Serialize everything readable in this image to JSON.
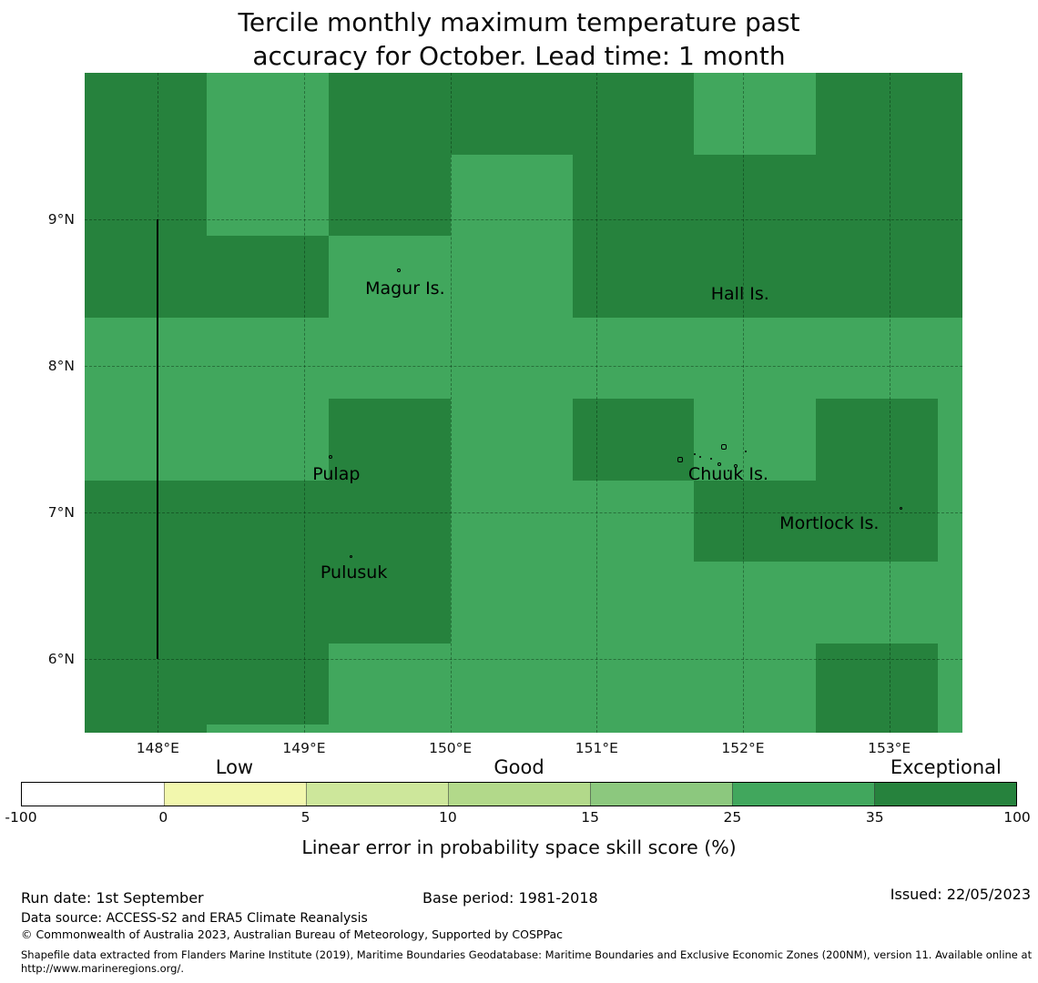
{
  "title": {
    "line1": "Tercile monthly maximum temperature past",
    "line2": "accuracy for October. Lead time: 1 month"
  },
  "chart_data": {
    "type": "heatmap",
    "title": "Tercile monthly maximum temperature past accuracy for October. Lead time: 1 month",
    "extent": {
      "lon_min": 147.5,
      "lon_max": 153.5,
      "lat_min": 5.5,
      "lat_max": 10.0
    },
    "x_axis": {
      "ticks": [
        {
          "label": "148°E",
          "lon": 148
        },
        {
          "label": "149°E",
          "lon": 149
        },
        {
          "label": "150°E",
          "lon": 150
        },
        {
          "label": "151°E",
          "lon": 151
        },
        {
          "label": "152°E",
          "lon": 152
        },
        {
          "label": "153°E",
          "lon": 153
        }
      ]
    },
    "y_axis": {
      "ticks": [
        {
          "label": "9°N",
          "lat": 9
        },
        {
          "label": "8°N",
          "lat": 8
        },
        {
          "label": "7°N",
          "lat": 7
        },
        {
          "label": "6°N",
          "lat": 6
        }
      ]
    },
    "grid": {
      "lon_edges": [
        147.5,
        148.3333,
        149.1667,
        150.0,
        150.8333,
        151.6667,
        152.5,
        153.3333,
        153.5
      ],
      "lat_edges": [
        10.0,
        9.4444,
        8.8889,
        8.3333,
        7.7778,
        7.2222,
        6.6667,
        6.1111,
        5.5556,
        5.5
      ],
      "rows": [
        "DMDDDMDD",
        "DMDMDDDD",
        "DDMMDDDD",
        "MMMMMMMM",
        "MMDMDMDM",
        "DDDMMDDM",
        "DDDMMMMM",
        "DDMMMMDM",
        "DMMMMMDM"
      ],
      "value_bins": {
        "D": "35-100",
        "M": "25-35"
      }
    },
    "cell_colors": {
      "D": "#26823D",
      "M": "#41A75D"
    },
    "eez_boundary": {
      "lon": 148.0,
      "lat_from": 6.0,
      "lat_to": 9.0
    },
    "islands": {
      "labels": [
        {
          "name": "Magur Is.",
          "lon": 149.69,
          "lat": 8.53
        },
        {
          "name": "Hall Is.",
          "lon": 151.98,
          "lat": 8.49
        },
        {
          "name": "Pulap",
          "lon": 149.22,
          "lat": 7.26
        },
        {
          "name": "Chuuk Is.",
          "lon": 151.9,
          "lat": 7.26
        },
        {
          "name": "Mortlock Is.",
          "lon": 152.59,
          "lat": 6.93
        },
        {
          "name": "Pulusuk",
          "lon": 149.34,
          "lat": 6.59
        }
      ],
      "marks": [
        {
          "lon": 149.65,
          "lat": 8.65,
          "s": 4
        },
        {
          "lon": 149.18,
          "lat": 7.38,
          "s": 4
        },
        {
          "lon": 149.32,
          "lat": 6.7,
          "s": 3
        },
        {
          "lon": 153.08,
          "lat": 7.03,
          "s": 3
        },
        {
          "lon": 151.57,
          "lat": 7.36,
          "s": 6
        },
        {
          "lon": 151.87,
          "lat": 7.45,
          "s": 6
        },
        {
          "lon": 151.84,
          "lat": 7.33,
          "s": 4
        },
        {
          "lon": 151.95,
          "lat": 7.32,
          "s": 4
        },
        {
          "lon": 151.71,
          "lat": 7.38,
          "s": 2
        },
        {
          "lon": 151.78,
          "lat": 7.37,
          "s": 2
        },
        {
          "lon": 151.9,
          "lat": 7.29,
          "s": 2
        },
        {
          "lon": 151.67,
          "lat": 7.4,
          "s": 2
        },
        {
          "lon": 152.02,
          "lat": 7.42,
          "s": 2
        }
      ]
    },
    "colorbar": {
      "caption": "Linear error in probability space skill score (%)",
      "ticks": [
        "-100",
        "0",
        "5",
        "10",
        "15",
        "25",
        "35",
        "100"
      ],
      "segments": [
        {
          "range": "-100 to 0",
          "color": "#FFFFFF"
        },
        {
          "range": "0 to 5",
          "color": "#F2F7AD"
        },
        {
          "range": "5 to 10",
          "color": "#CDE79B"
        },
        {
          "range": "10 to 15",
          "color": "#B2D98A"
        },
        {
          "range": "15 to 25",
          "color": "#8CC87E"
        },
        {
          "range": "25 to 35",
          "color": "#41A75D"
        },
        {
          "range": "35 to 100",
          "color": "#26823D"
        }
      ],
      "zone_labels": [
        {
          "label": "Low",
          "pos": 1.5
        },
        {
          "label": "Good",
          "pos": 3.5
        },
        {
          "label": "Exceptional",
          "pos": 6.5
        }
      ]
    },
    "gridlines": true,
    "legend_position": "bottom"
  },
  "footer": {
    "run_date": "Run date: 1st September",
    "base_period": "Base period: 1981-2018",
    "issued": "Issued: 22/05/2023",
    "data_source": "Data source: ACCESS-S2 and ERA5 Climate Reanalysis",
    "copyright": "© Commonwealth of Australia 2023, Australian Bureau of Meteorology, Supported by COSPPac",
    "shapefile_note": "Shapefile data extracted from Flanders Marine Institute (2019), Maritime Boundaries Geodatabase: Maritime Boundaries and Exclusive Economic Zones (200NM), version 11. Available online at http://www.marineregions.org/."
  }
}
